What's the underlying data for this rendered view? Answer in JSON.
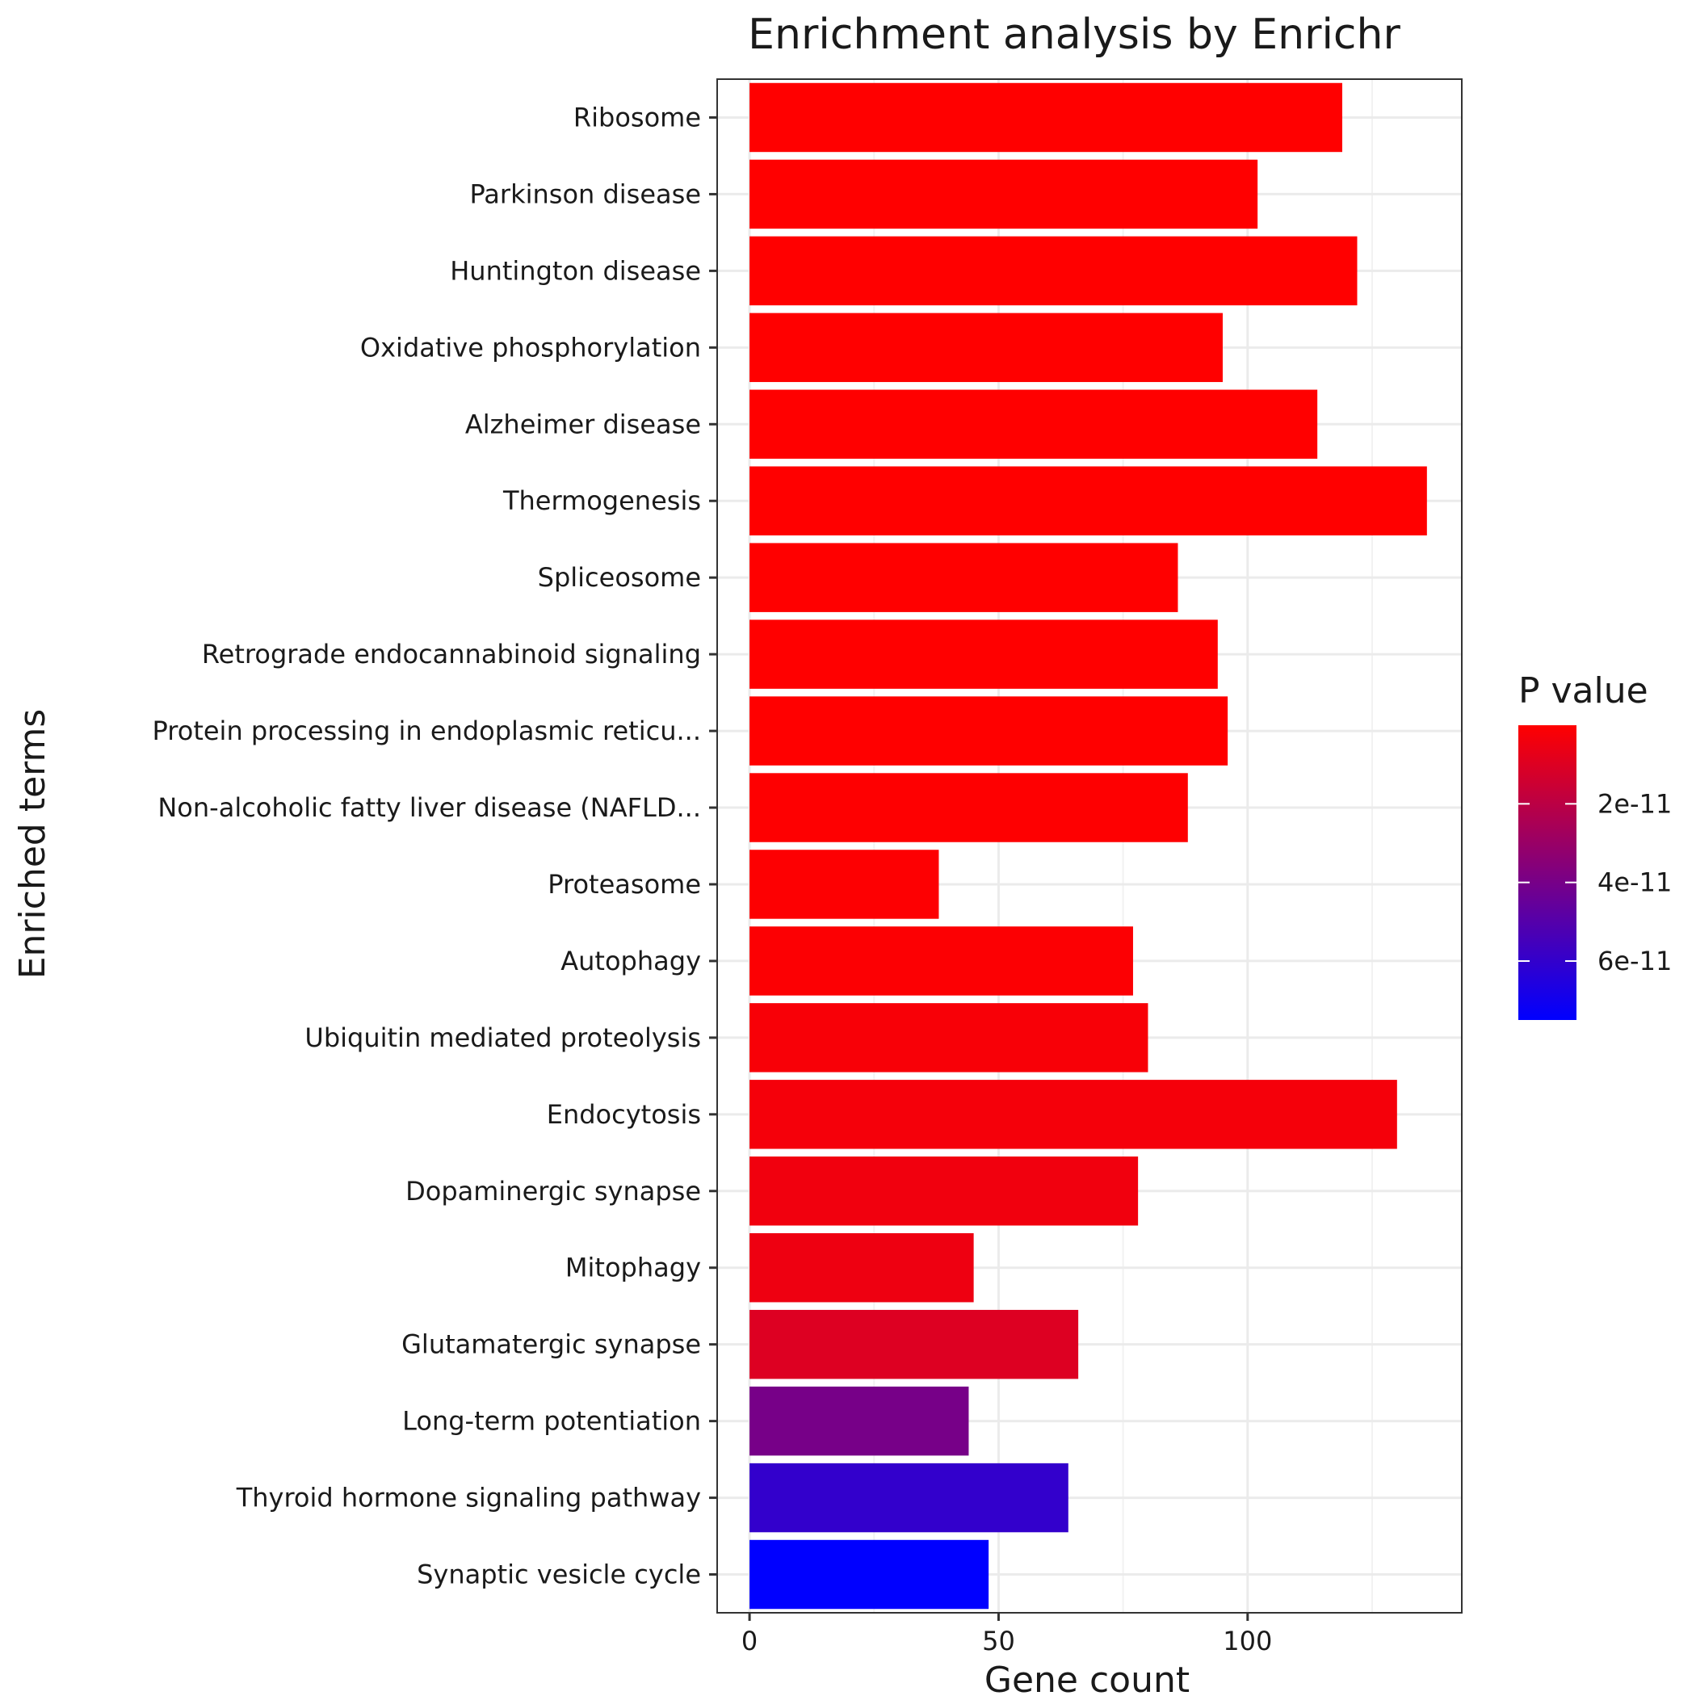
{
  "chart_data": {
    "type": "bar",
    "orientation": "horizontal",
    "title": "Enrichment analysis by Enrichr",
    "xlabel": "Gene count",
    "ylabel": "Enriched terms",
    "xlim": [
      -6.5,
      143
    ],
    "x_ticks": [
      0,
      50,
      100
    ],
    "grid": true,
    "categories": [
      "Ribosome",
      "Parkinson disease",
      "Huntington disease",
      "Oxidative phosphorylation",
      "Alzheimer disease",
      "Thermogenesis",
      "Spliceosome",
      "Retrograde endocannabinoid signaling",
      "Protein processing in endoplasmic reticu...",
      "Non-alcoholic fatty liver disease (NAFLD...",
      "Proteasome",
      "Autophagy",
      "Ubiquitin mediated proteolysis",
      "Endocytosis",
      "Dopaminergic synapse",
      "Mitophagy",
      "Glutamatergic synapse",
      "Long-term potentiation",
      "Thyroid hormone signaling pathway",
      "Synaptic vesicle cycle"
    ],
    "values": [
      119,
      102,
      122,
      95,
      114,
      136,
      86,
      94,
      96,
      88,
      38,
      77,
      80,
      130,
      78,
      45,
      66,
      44,
      64,
      48
    ],
    "p_values": [
      1e-15,
      1e-15,
      1e-15,
      1e-15,
      1e-15,
      1e-14,
      1e-14,
      5e-14,
      1e-13,
      2e-13,
      5e-13,
      1e-12,
      2e-12,
      3e-12,
      4e-12,
      5e-12,
      1e-11,
      4e-11,
      6e-11,
      7.5e-11
    ],
    "color_legend": {
      "title": "P value",
      "low_color": "#FF0000",
      "high_color": "#0000FF",
      "range": [
        0,
        7.5e-11
      ],
      "ticks": [
        2e-11,
        4e-11,
        6e-11
      ],
      "tick_labels": [
        "2e-11",
        "4e-11",
        "6e-11"
      ],
      "placement": "right"
    }
  }
}
